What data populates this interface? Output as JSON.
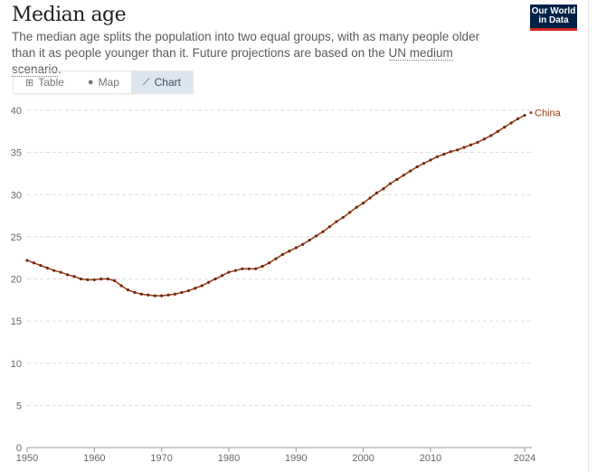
{
  "header": {
    "title": "Median age",
    "subtitle_pre": "The median age splits the population into two equal groups, with as many people older than it as people younger than it. Future projections are based on the ",
    "subtitle_link": "UN medium scenario",
    "subtitle_post": ".",
    "logo": "Our World in Data",
    "logo_colors": {
      "bg": "#002147",
      "accent": "#ce261e"
    }
  },
  "tabs": [
    {
      "label": "Table",
      "icon": "table-icon"
    },
    {
      "label": "Map",
      "icon": "globe-icon"
    },
    {
      "label": "Chart",
      "icon": "line-chart-icon",
      "active": true
    }
  ],
  "chart_data": {
    "type": "line",
    "title": "",
    "xlabel": "",
    "ylabel": "",
    "xlim": [
      1950,
      2024
    ],
    "ylim": [
      0,
      40
    ],
    "grid": "horizontal dashed",
    "x_ticks": [
      "1950",
      "1960",
      "1970",
      "1980",
      "1990",
      "2000",
      "2010",
      "2024"
    ],
    "y_ticks": [
      "0",
      "5",
      "10",
      "15",
      "20",
      "25",
      "30",
      "35",
      "40"
    ],
    "series": [
      {
        "name": "China",
        "color": "#9a3b12",
        "x": [
          1950,
          1951,
          1952,
          1953,
          1954,
          1955,
          1956,
          1957,
          1958,
          1959,
          1960,
          1961,
          1962,
          1963,
          1964,
          1965,
          1966,
          1967,
          1968,
          1969,
          1970,
          1971,
          1972,
          1973,
          1974,
          1975,
          1976,
          1977,
          1978,
          1979,
          1980,
          1981,
          1982,
          1983,
          1984,
          1985,
          1986,
          1987,
          1988,
          1989,
          1990,
          1991,
          1992,
          1993,
          1994,
          1995,
          1996,
          1997,
          1998,
          1999,
          2000,
          2001,
          2002,
          2003,
          2004,
          2005,
          2006,
          2007,
          2008,
          2009,
          2010,
          2011,
          2012,
          2013,
          2014,
          2015,
          2016,
          2017,
          2018,
          2019,
          2020,
          2021,
          2022,
          2023,
          2024
        ],
        "values": [
          22.2,
          21.9,
          21.6,
          21.3,
          21.0,
          20.8,
          20.5,
          20.3,
          20.0,
          19.9,
          19.9,
          20.0,
          20.0,
          19.8,
          19.2,
          18.7,
          18.4,
          18.2,
          18.1,
          18.0,
          18.0,
          18.1,
          18.2,
          18.4,
          18.6,
          18.9,
          19.2,
          19.6,
          20.0,
          20.4,
          20.8,
          21.0,
          21.2,
          21.2,
          21.2,
          21.5,
          21.9,
          22.4,
          22.9,
          23.3,
          23.7,
          24.1,
          24.6,
          25.1,
          25.6,
          26.2,
          26.8,
          27.3,
          27.9,
          28.5,
          29.0,
          29.6,
          30.2,
          30.7,
          31.3,
          31.8,
          32.3,
          32.8,
          33.3,
          33.7,
          34.1,
          34.5,
          34.8,
          35.1,
          35.3,
          35.6,
          35.9,
          36.2,
          36.6,
          37.0,
          37.5,
          38.0,
          38.5,
          39.0,
          39.4
        ]
      }
    ]
  }
}
